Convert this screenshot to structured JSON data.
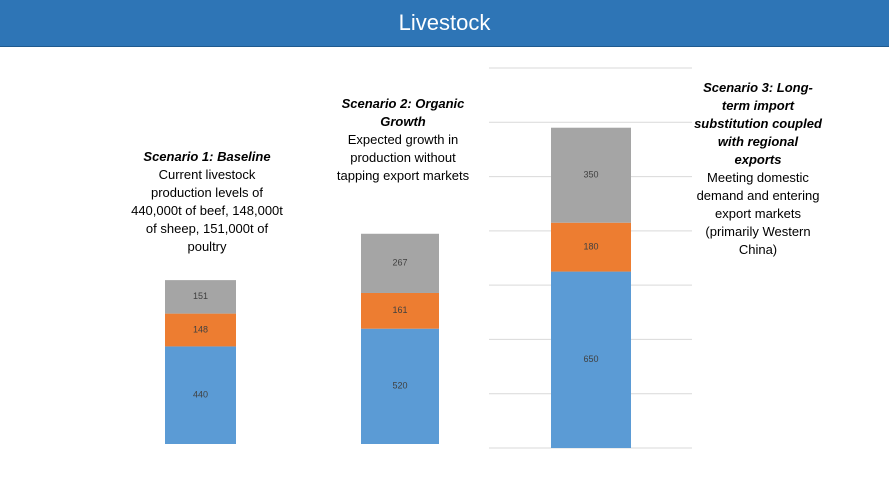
{
  "header": {
    "title": "Livestock"
  },
  "chart_data": [
    {
      "type": "stacked_bar",
      "title": "Scenario 1: Baseline",
      "subtitle": "Current livestock production levels of 440,000t of beef, 148,000t of sheep, 151,000t of poultry",
      "series": [
        {
          "color": "#5b9bd5",
          "values": [
            440
          ]
        },
        {
          "color": "#ed7d31",
          "values": [
            148
          ]
        },
        {
          "color": "#a5a5a5",
          "values": [
            151
          ]
        }
      ],
      "ylim": [
        0,
        1700
      ],
      "grid": false
    },
    {
      "type": "stacked_bar",
      "title": "Scenario 2: Organic Growth",
      "subtitle": "Expected growth in production without tapping export markets",
      "series": [
        {
          "color": "#5b9bd5",
          "values": [
            520
          ]
        },
        {
          "color": "#ed7d31",
          "values": [
            161
          ]
        },
        {
          "color": "#a5a5a5",
          "values": [
            267
          ]
        }
      ],
      "ylim": [
        0,
        1700
      ],
      "grid": false
    },
    {
      "type": "stacked_bar",
      "title": "Scenario 3: Long-term import substitution coupled with regional exports",
      "subtitle": "Meeting domestic demand and entering export markets (primarily Western China)",
      "series": [
        {
          "color": "#5b9bd5",
          "values": [
            650
          ]
        },
        {
          "color": "#ed7d31",
          "values": [
            180
          ]
        },
        {
          "color": "#a5a5a5",
          "values": [
            350
          ]
        }
      ],
      "ylim": [
        0,
        1400
      ],
      "yticks": [
        0,
        200,
        400,
        600,
        800,
        1000,
        1200,
        1400
      ],
      "grid": true,
      "tick_labels": false
    }
  ]
}
